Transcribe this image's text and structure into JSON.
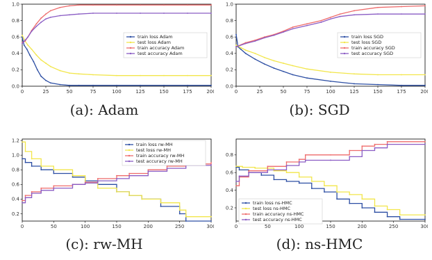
{
  "captions": [
    "(a): Adam",
    "(b): SGD",
    "(c): rw-MH",
    "(d): ns-HMC"
  ],
  "colors": {
    "train_loss": "#2c4ea3",
    "test_loss": "#f2e64a",
    "train_accuracy": "#ee6b6b",
    "test_accuracy": "#8a5cc4"
  },
  "chart_data": [
    {
      "type": "line",
      "xlim": [
        0,
        200
      ],
      "ylim": [
        0,
        1.0
      ],
      "xticks": [
        "0",
        "25",
        "50",
        "75",
        "100",
        "125",
        "150",
        "175",
        "200"
      ],
      "yticks": [
        "0.0",
        "0.2",
        "0.4",
        "0.6",
        "0.8",
        "1.0"
      ],
      "legend_position": "center-right",
      "series": [
        {
          "name": "train loss Adam",
          "color_key": "train_loss",
          "x": [
            0,
            2,
            5,
            8,
            12,
            16,
            20,
            25,
            30,
            40,
            50,
            60,
            75,
            100,
            125,
            150,
            175,
            200
          ],
          "y": [
            0.6,
            0.5,
            0.45,
            0.38,
            0.3,
            0.2,
            0.12,
            0.07,
            0.04,
            0.02,
            0.01,
            0.01,
            0.01,
            0.01,
            0.01,
            0.01,
            0.01,
            0.01
          ]
        },
        {
          "name": "test loss Adam",
          "color_key": "test_loss",
          "x": [
            0,
            3,
            6,
            10,
            15,
            20,
            25,
            30,
            40,
            50,
            60,
            75,
            100,
            125,
            150,
            175,
            200
          ],
          "y": [
            0.62,
            0.55,
            0.5,
            0.45,
            0.38,
            0.32,
            0.28,
            0.24,
            0.19,
            0.16,
            0.15,
            0.14,
            0.13,
            0.13,
            0.13,
            0.13,
            0.13
          ]
        },
        {
          "name": "train accuracy Adam",
          "color_key": "train_accuracy",
          "x": [
            0,
            3,
            6,
            10,
            15,
            20,
            25,
            30,
            40,
            50,
            60,
            75,
            100,
            125,
            150,
            175,
            200
          ],
          "y": [
            0.53,
            0.55,
            0.6,
            0.68,
            0.76,
            0.83,
            0.88,
            0.92,
            0.96,
            0.98,
            0.99,
            0.99,
            0.99,
            0.99,
            0.99,
            0.99,
            0.99
          ]
        },
        {
          "name": "test accuracy Adam",
          "color_key": "test_accuracy",
          "x": [
            0,
            3,
            6,
            10,
            15,
            20,
            25,
            30,
            40,
            50,
            60,
            75,
            100,
            125,
            150,
            175,
            200
          ],
          "y": [
            0.52,
            0.56,
            0.6,
            0.67,
            0.73,
            0.78,
            0.82,
            0.84,
            0.86,
            0.87,
            0.88,
            0.89,
            0.89,
            0.89,
            0.89,
            0.89,
            0.89
          ]
        }
      ]
    },
    {
      "type": "line",
      "xlim": [
        0,
        200
      ],
      "ylim": [
        0,
        1.0
      ],
      "xticks": [
        "0",
        "25",
        "50",
        "75",
        "100",
        "125",
        "150",
        "175",
        "200"
      ],
      "yticks": [
        "0.0",
        "0.2",
        "0.4",
        "0.6",
        "0.8",
        "1.0"
      ],
      "legend_position": "center-right",
      "series": [
        {
          "name": "train loss SGD",
          "color_key": "train_loss",
          "x": [
            0,
            2,
            5,
            10,
            20,
            30,
            40,
            50,
            60,
            75,
            100,
            125,
            150,
            175,
            200
          ],
          "y": [
            0.63,
            0.48,
            0.45,
            0.4,
            0.33,
            0.27,
            0.22,
            0.18,
            0.14,
            0.1,
            0.06,
            0.03,
            0.02,
            0.01,
            0.01
          ]
        },
        {
          "name": "test loss SGD",
          "color_key": "test_loss",
          "x": [
            0,
            5,
            10,
            20,
            30,
            40,
            50,
            60,
            75,
            100,
            125,
            150,
            175,
            200
          ],
          "y": [
            0.5,
            0.47,
            0.44,
            0.4,
            0.35,
            0.31,
            0.28,
            0.25,
            0.21,
            0.17,
            0.15,
            0.14,
            0.14,
            0.14
          ]
        },
        {
          "name": "train accuracy SGD",
          "color_key": "train_accuracy",
          "x": [
            0,
            10,
            20,
            30,
            40,
            50,
            60,
            75,
            90,
            100,
            110,
            125,
            150,
            175,
            200
          ],
          "y": [
            0.48,
            0.53,
            0.56,
            0.6,
            0.63,
            0.67,
            0.72,
            0.76,
            0.8,
            0.84,
            0.88,
            0.92,
            0.96,
            0.97,
            0.98
          ]
        },
        {
          "name": "test accuracy SGD",
          "color_key": "test_accuracy",
          "x": [
            0,
            10,
            20,
            30,
            40,
            50,
            60,
            75,
            90,
            100,
            110,
            125,
            150,
            175,
            200
          ],
          "y": [
            0.48,
            0.52,
            0.55,
            0.59,
            0.62,
            0.66,
            0.7,
            0.74,
            0.78,
            0.82,
            0.85,
            0.87,
            0.88,
            0.88,
            0.88
          ]
        }
      ]
    },
    {
      "type": "line",
      "step": true,
      "xlim": [
        0,
        300
      ],
      "ylim": [
        0.1,
        1.22
      ],
      "xticks": [
        "0",
        "50",
        "100",
        "150",
        "200",
        "250",
        "300"
      ],
      "yticks": [
        "0.2",
        "0.4",
        "0.6",
        "0.8",
        "1.0",
        "1.2"
      ],
      "legend_position": "top-right",
      "series": [
        {
          "name": "train loss rw-MH",
          "color_key": "train_loss",
          "x": [
            0,
            5,
            15,
            30,
            50,
            80,
            100,
            120,
            150,
            170,
            190,
            220,
            250,
            260,
            300
          ],
          "y": [
            0.95,
            0.9,
            0.85,
            0.8,
            0.75,
            0.7,
            0.65,
            0.6,
            0.5,
            0.45,
            0.4,
            0.3,
            0.2,
            0.1,
            0.1
          ]
        },
        {
          "name": "test loss rw-MH",
          "color_key": "test_loss",
          "x": [
            0,
            5,
            15,
            30,
            50,
            80,
            100,
            120,
            150,
            170,
            190,
            220,
            250,
            260,
            300
          ],
          "y": [
            1.18,
            1.05,
            0.95,
            0.85,
            0.8,
            0.72,
            0.62,
            0.55,
            0.5,
            0.45,
            0.4,
            0.35,
            0.25,
            0.16,
            0.16
          ]
        },
        {
          "name": "train accuracy rw-MH",
          "color_key": "train_accuracy",
          "x": [
            0,
            5,
            15,
            30,
            50,
            80,
            100,
            120,
            150,
            170,
            200,
            230,
            260,
            300
          ],
          "y": [
            0.38,
            0.45,
            0.5,
            0.55,
            0.58,
            0.6,
            0.63,
            0.68,
            0.72,
            0.75,
            0.8,
            0.85,
            0.88,
            0.9
          ]
        },
        {
          "name": "test accuracy rw-MH",
          "color_key": "test_accuracy",
          "x": [
            0,
            5,
            15,
            30,
            50,
            80,
            100,
            120,
            150,
            170,
            200,
            230,
            260,
            300
          ],
          "y": [
            0.35,
            0.42,
            0.48,
            0.52,
            0.55,
            0.6,
            0.62,
            0.65,
            0.68,
            0.72,
            0.78,
            0.82,
            0.86,
            0.87
          ]
        }
      ]
    },
    {
      "type": "line",
      "step": true,
      "xlim": [
        0,
        300
      ],
      "ylim": [
        0.05,
        0.98
      ],
      "xticks": [
        "0",
        "50",
        "100",
        "150",
        "200",
        "250",
        "300"
      ],
      "yticks": [
        "0.2",
        "0.4",
        "0.6",
        "0.8"
      ],
      "legend_position": "bottom-left",
      "series": [
        {
          "name": "train loss ns-HMC",
          "color_key": "train_loss",
          "x": [
            0,
            5,
            20,
            40,
            60,
            80,
            100,
            120,
            140,
            160,
            180,
            200,
            220,
            240,
            260,
            300
          ],
          "y": [
            0.66,
            0.63,
            0.6,
            0.57,
            0.52,
            0.5,
            0.48,
            0.42,
            0.38,
            0.3,
            0.25,
            0.2,
            0.15,
            0.1,
            0.07,
            0.07
          ]
        },
        {
          "name": "test loss ns-HMC",
          "color_key": "test_loss",
          "x": [
            0,
            10,
            30,
            60,
            80,
            100,
            120,
            140,
            160,
            180,
            200,
            220,
            240,
            260,
            300
          ],
          "y": [
            0.67,
            0.66,
            0.65,
            0.62,
            0.6,
            0.55,
            0.5,
            0.45,
            0.38,
            0.35,
            0.3,
            0.22,
            0.18,
            0.12,
            0.12
          ]
        },
        {
          "name": "train accuracy ns-HMC",
          "color_key": "train_accuracy",
          "x": [
            0,
            5,
            20,
            50,
            80,
            100,
            110,
            150,
            180,
            200,
            220,
            240,
            300
          ],
          "y": [
            0.45,
            0.55,
            0.62,
            0.67,
            0.72,
            0.75,
            0.8,
            0.8,
            0.85,
            0.9,
            0.92,
            0.95,
            0.95
          ]
        },
        {
          "name": "test accuracy ns-HMC",
          "color_key": "test_accuracy",
          "x": [
            0,
            5,
            20,
            50,
            80,
            100,
            110,
            150,
            180,
            200,
            220,
            240,
            300
          ],
          "y": [
            0.5,
            0.56,
            0.6,
            0.63,
            0.68,
            0.72,
            0.74,
            0.74,
            0.78,
            0.85,
            0.88,
            0.92,
            0.92
          ]
        }
      ]
    }
  ]
}
